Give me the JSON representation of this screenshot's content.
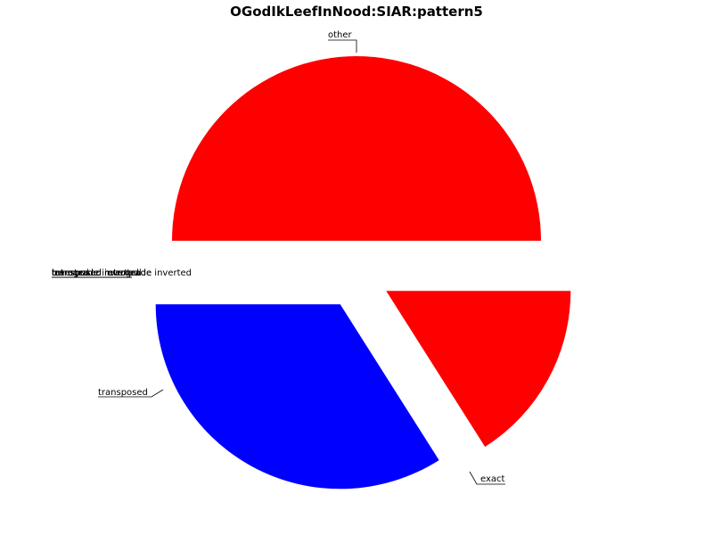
{
  "chart_data": {
    "type": "pie",
    "title": "OGodIkLeefInNood:SIAR:pattern5",
    "labels": [
      "other",
      "exact",
      "transposed",
      "inverted",
      "retrograde",
      "retrograde inverted",
      "transposed inverted",
      "transposed retrograde",
      "transposed retrograde inverted"
    ],
    "values": [
      50,
      34,
      16,
      0,
      0,
      0,
      0,
      0,
      0
    ],
    "colors": [
      "#ff0000",
      "#0000ff",
      "#ff0000",
      "#ff0000",
      "#ff0000",
      "#ff0000",
      "#ff0000",
      "#ff0000",
      "#ff0000"
    ],
    "exploded": true,
    "legend": "none"
  }
}
